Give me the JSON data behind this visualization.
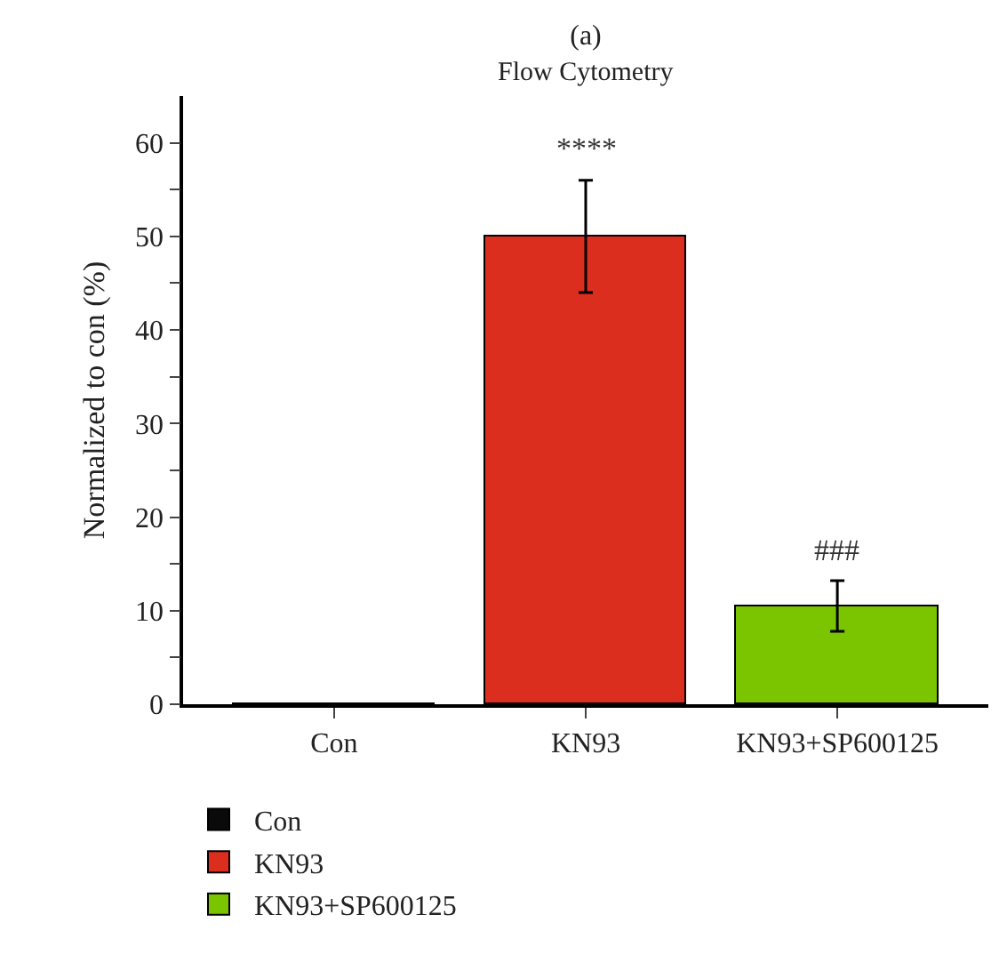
{
  "chart_data": {
    "type": "bar",
    "title": "(a)",
    "subtitle": "Flow Cytometry",
    "ylabel": "Normalized to con (%)",
    "categories": [
      "Con",
      "KN93",
      "KN93+SP600125"
    ],
    "series": [
      {
        "name": "Con",
        "color": "#0a0a0a",
        "values": [
          0,
          null,
          null
        ]
      },
      {
        "name": "KN93",
        "color": "#dc2e1f",
        "values": [
          null,
          50,
          null
        ],
        "errors": [
          null,
          6,
          null
        ]
      },
      {
        "name": "KN93+SP600125",
        "color": "#7ac400",
        "values": [
          null,
          null,
          10.5
        ],
        "errors": [
          null,
          null,
          2.7
        ]
      }
    ],
    "ylim": [
      0,
      65
    ],
    "yticks": [
      0,
      {
        "value": 5,
        "label": null
      },
      10,
      {
        "value": 15,
        "label": null
      },
      20,
      {
        "value": 25,
        "label": null
      },
      30,
      {
        "value": 35,
        "label": null
      },
      40,
      {
        "value": 45,
        "label": null
      },
      50,
      {
        "value": 55,
        "label": null
      },
      60
    ],
    "annotations": [
      {
        "text": "****",
        "x": "KN93",
        "y": 56
      },
      {
        "text": "###",
        "x": "KN93+SP600125",
        "y": 13.2
      }
    ],
    "grid": false,
    "legend": "bottom left"
  }
}
